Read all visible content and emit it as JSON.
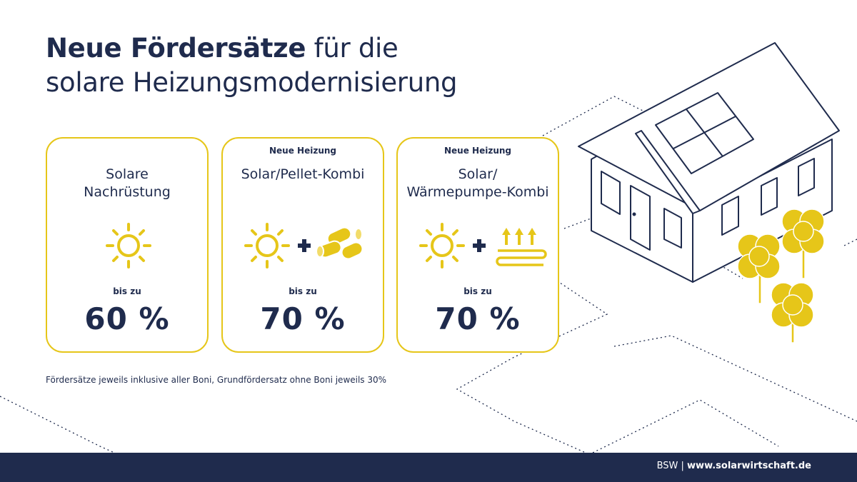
{
  "title": {
    "bold": "Neue Fördersätze",
    "rest_line1": " für die",
    "line2": "solare Heizungsmodernisierung"
  },
  "cards": [
    {
      "kicker": "",
      "name_line1": "Solare",
      "name_line2": "Nachrüstung",
      "bis": "bis zu",
      "value": "60 %",
      "icons": [
        "sun-icon"
      ]
    },
    {
      "kicker": "Neue Heizung",
      "name_line1": "Solar/Pellet-Kombi",
      "name_line2": "",
      "bis": "bis zu",
      "value": "70 %",
      "icons": [
        "sun-icon",
        "plus-icon",
        "pellets-icon"
      ]
    },
    {
      "kicker": "Neue Heizung",
      "name_line1": "Solar/",
      "name_line2": "Wärmepumpe-Kombi",
      "bis": "bis zu",
      "value": "70 %",
      "icons": [
        "sun-icon",
        "plus-icon",
        "heat-pump-icon"
      ]
    }
  ],
  "footnote": "Fördersätze jeweils inklusive aller Boni, Grundfördersatz ohne Boni jeweils 30%",
  "footer": {
    "org": "BSW",
    "separator": " | ",
    "site": "www.solarwirtschaft.de"
  },
  "colors": {
    "navy": "#1f2b4d",
    "yellow": "#e6c619",
    "line": "#1f2b4d"
  }
}
